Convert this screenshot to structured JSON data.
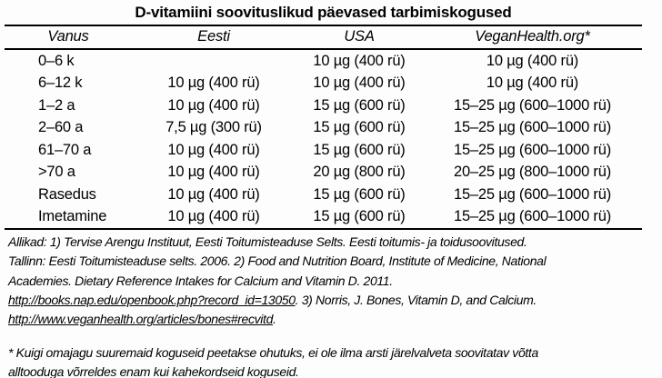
{
  "title": "D-vitamiini soovituslikud päevased tarbimiskogused",
  "table": {
    "columns": [
      "Vanus",
      "Eesti",
      "USA",
      "VeganHealth.org*"
    ],
    "rows": [
      [
        "0–6 k",
        "",
        "10 µg (400 rü)",
        "10 µg (400 rü)"
      ],
      [
        "6–12 k",
        "10 µg (400 rü)",
        "10 µg (400 rü)",
        "10 µg (400 rü)"
      ],
      [
        "1–2 a",
        "10 µg (400 rü)",
        "15 µg (600 rü)",
        "15–25 µg (600–1000 rü)"
      ],
      [
        "2–60 a",
        "7,5 µg (300 rü)",
        "15 µg (600 rü)",
        "15–25 µg (600–1000 rü)"
      ],
      [
        "61–70 a",
        "10 µg (400 rü)",
        "15 µg (600 rü)",
        "15–25 µg (600–1000 rü)"
      ],
      [
        ">70 a",
        "10 µg (400 rü)",
        "20 µg (800 rü)",
        "20–25 µg (800–1000 rü)"
      ],
      [
        "Rasedus",
        "10 µg (400 rü)",
        "15 µg (600 rü)",
        "15–25 µg (600–1000 rü)"
      ],
      [
        "Imetamine",
        "10 µg (400 rü)",
        "15 µg (600 rü)",
        "15–25 µg (600–1000 rü)"
      ]
    ]
  },
  "sources": {
    "lines": [
      [
        {
          "text": "Allikad: 1) Tervise Arengu Instituut, Eesti Toitumisteaduse Selts. Eesti toitumis- ja toidusoovitused.",
          "underline": false
        }
      ],
      [
        {
          "text": "Tallinn: Eesti Toitumisteaduse selts. 2006. 2) Food and Nutrition Board, Institute of Medicine, National",
          "underline": false
        }
      ],
      [
        {
          "text": "Academies. Dietary Reference Intakes for Calcium and Vitamin D. 2011.",
          "underline": false
        }
      ],
      [
        {
          "text": "http://books.nap.edu/openbook.php?record_id=13050",
          "underline": true
        },
        {
          "text": ". 3) Norris, J. Bones, Vitamin D, and Calcium.",
          "underline": false
        }
      ],
      [
        {
          "text": "http://www.veganhealth.org/articles/bones#recvitd",
          "underline": true
        },
        {
          "text": ".",
          "underline": false
        }
      ]
    ]
  },
  "caution": {
    "lines": [
      "* Kuigi omajagu suuremaid koguseid peetakse ohutuks, ei ole ilma arsti järelvalveta soovitatav võtta",
      "alltooduga võrreldes enam kui kahekordseid koguseid."
    ]
  },
  "colors": {
    "background": "#fdfdfd",
    "text": "#000000",
    "rule": "#000000"
  }
}
